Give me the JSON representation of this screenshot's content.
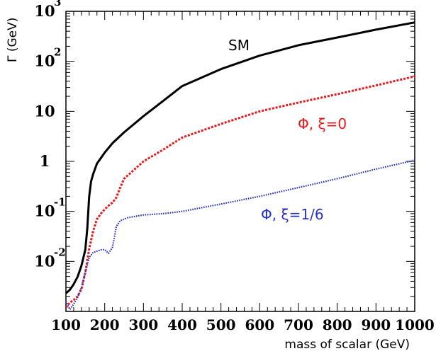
{
  "chart_data": {
    "type": "line",
    "xlabel": "mass of scalar (GeV)",
    "ylabel": "Γ (GeV)",
    "xlim": [
      100,
      1000
    ],
    "ylim": [
      0.001,
      1000
    ],
    "yscale": "log",
    "grid": false,
    "x_ticks": [
      "100",
      "200",
      "300",
      "400",
      "500",
      "600",
      "700",
      "800",
      "900",
      "1000"
    ],
    "y_ticks": [
      {
        "base": "10",
        "exp": "-2",
        "value": 0.01
      },
      {
        "base": "10",
        "exp": "-1",
        "value": 0.1
      },
      {
        "base": "1",
        "exp": "",
        "value": 1
      },
      {
        "base": "10",
        "exp": "",
        "value": 10
      },
      {
        "base": "10",
        "exp": "2",
        "value": 100
      },
      {
        "base": "10",
        "exp": "3",
        "value": 1000
      }
    ],
    "series": [
      {
        "name": "SM",
        "color": "#000000",
        "style": "solid",
        "x": [
          100,
          110,
          120,
          130,
          140,
          150,
          155,
          160,
          165,
          170,
          180,
          200,
          220,
          250,
          300,
          350,
          400,
          500,
          600,
          700,
          800,
          900,
          1000
        ],
        "y": [
          0.0023,
          0.0027,
          0.0035,
          0.0049,
          0.0082,
          0.017,
          0.045,
          0.2,
          0.4,
          0.55,
          0.9,
          1.5,
          2.3,
          3.8,
          8.0,
          16,
          32,
          70,
          130,
          210,
          300,
          430,
          600
        ]
      },
      {
        "name": "Φ, ξ=0",
        "color": "#e8191c",
        "style": "dotted",
        "x": [
          100,
          110,
          120,
          130,
          140,
          150,
          160,
          170,
          180,
          190,
          200,
          210,
          220,
          230,
          240,
          250,
          300,
          350,
          400,
          500,
          600,
          700,
          800,
          900,
          1000
        ],
        "y": [
          0.0012,
          0.0015,
          0.0017,
          0.002,
          0.0028,
          0.006,
          0.018,
          0.04,
          0.07,
          0.09,
          0.11,
          0.13,
          0.15,
          0.19,
          0.3,
          0.45,
          1.0,
          1.7,
          3.0,
          5.6,
          10,
          15,
          22,
          33,
          50
        ]
      },
      {
        "name": "Φ, ξ=1/6",
        "color": "#2633c2",
        "style": "dotted",
        "x": [
          100,
          110,
          120,
          130,
          140,
          150,
          160,
          170,
          180,
          190,
          200,
          210,
          220,
          225,
          230,
          240,
          260,
          300,
          350,
          400,
          500,
          600,
          700,
          800,
          900,
          1000
        ],
        "y": [
          0.0016,
          0.0011,
          0.0014,
          0.0019,
          0.003,
          0.006,
          0.012,
          0.015,
          0.016,
          0.017,
          0.0172,
          0.0145,
          0.019,
          0.03,
          0.05,
          0.065,
          0.075,
          0.085,
          0.09,
          0.1,
          0.14,
          0.2,
          0.3,
          0.45,
          0.7,
          1.05
        ]
      }
    ]
  }
}
